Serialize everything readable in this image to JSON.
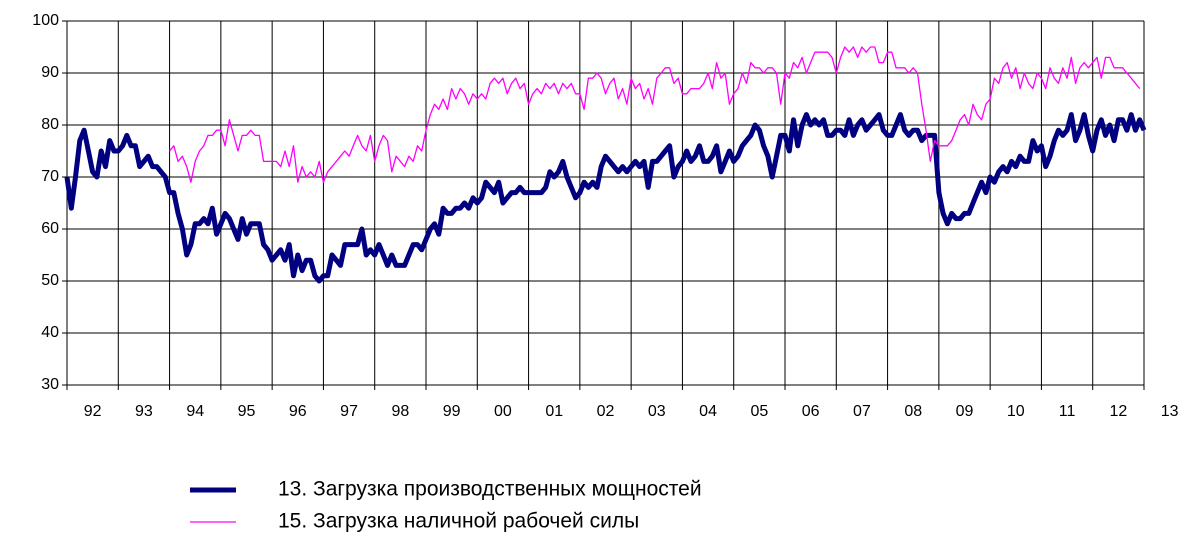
{
  "chart_data": {
    "type": "line",
    "categories": [
      "92",
      "93",
      "94",
      "95",
      "96",
      "97",
      "98",
      "99",
      "00",
      "01",
      "02",
      "03",
      "04",
      "05",
      "06",
      "07",
      "08",
      "09",
      "10",
      "11",
      "12",
      "13"
    ],
    "ylim": [
      30,
      100
    ],
    "yticks": [
      30,
      40,
      50,
      60,
      70,
      80,
      90,
      100
    ],
    "grid": true,
    "legend": "bottom",
    "series": [
      {
        "name": "13. Загрузка производственных мощностей",
        "color": "#000080",
        "values": [
          [
            70,
            64,
            70,
            77,
            79,
            75,
            71,
            70,
            75,
            72,
            77,
            75
          ],
          [
            75,
            76,
            78,
            76,
            76,
            72,
            73,
            74,
            72,
            72,
            71,
            70
          ],
          [
            67,
            67,
            63,
            60,
            55,
            57,
            61,
            61,
            62,
            61,
            64,
            59
          ],
          [
            61,
            63,
            62,
            60,
            58,
            62,
            59,
            61,
            61,
            61,
            57,
            56
          ],
          [
            54,
            55,
            56,
            54,
            57,
            51,
            55,
            52,
            54,
            54,
            51,
            50
          ],
          [
            51,
            51,
            55,
            54,
            53,
            57,
            57,
            57,
            57,
            60,
            55,
            56
          ],
          [
            55,
            57,
            55,
            53,
            55,
            53,
            53,
            53,
            55,
            57,
            57,
            56
          ],
          [
            58,
            60,
            61,
            59,
            64,
            63,
            63,
            64,
            64,
            65,
            64,
            66
          ],
          [
            65,
            66,
            69,
            68,
            67,
            69,
            65,
            66,
            67,
            67,
            68,
            67
          ],
          [
            67,
            67,
            67,
            67,
            68,
            71,
            70,
            71,
            73,
            70,
            68,
            66
          ],
          [
            67,
            69,
            68,
            69,
            68,
            72,
            74,
            73,
            72,
            71,
            72,
            71
          ],
          [
            72,
            73,
            72,
            73,
            68,
            73,
            73,
            74,
            75,
            76,
            70,
            72
          ],
          [
            73,
            75,
            73,
            74,
            76,
            73,
            73,
            74,
            76,
            71,
            73,
            75
          ],
          [
            73,
            74,
            76,
            77,
            78,
            80,
            79,
            76,
            74,
            70,
            74,
            78
          ],
          [
            78,
            75,
            81,
            76,
            80,
            82,
            80,
            81,
            80,
            81,
            78,
            78
          ],
          [
            79,
            79,
            78,
            81,
            78,
            80,
            81,
            79,
            80,
            81,
            82,
            79
          ],
          [
            78,
            78,
            80,
            82,
            79,
            78,
            79,
            79,
            77,
            78,
            78,
            78
          ],
          [
            67,
            63,
            61,
            63,
            62,
            62,
            63,
            63,
            65,
            67,
            69,
            67
          ],
          [
            70,
            69,
            71,
            72,
            71,
            73,
            72,
            74,
            73,
            73,
            77,
            75
          ],
          [
            76,
            72,
            74,
            77,
            79,
            78,
            79,
            82,
            77,
            79,
            82,
            78
          ],
          [
            75,
            79,
            81,
            78,
            80,
            77,
            81,
            81,
            79,
            82,
            79,
            81
          ],
          [
            79
          ]
        ]
      },
      {
        "name": "15. Загрузка наличной рабочей силы",
        "color": "#ff00ff",
        "values": [
          [],
          [],
          [
            75,
            76,
            73,
            74,
            72,
            69,
            73,
            75,
            76,
            78,
            78,
            79
          ],
          [
            79,
            76,
            81,
            78,
            75,
            78,
            78,
            79,
            78,
            78,
            73,
            73
          ],
          [
            73,
            73,
            72,
            75,
            72,
            76,
            69,
            72,
            70,
            71,
            70,
            73
          ],
          [
            69,
            71,
            72,
            73,
            74,
            75,
            74,
            76,
            78,
            76,
            75,
            78
          ],
          [
            73,
            76,
            78,
            77,
            71,
            74,
            73,
            72,
            74,
            73,
            76,
            75
          ],
          [
            79,
            82,
            84,
            83,
            85,
            83,
            87,
            85,
            87,
            86,
            84,
            86
          ],
          [
            85,
            86,
            85,
            88,
            89,
            88,
            89,
            86,
            88,
            89,
            87,
            88
          ],
          [
            84,
            86,
            87,
            86,
            88,
            87,
            88,
            86,
            88,
            87,
            88,
            86
          ],
          [
            86,
            83,
            89,
            89,
            90,
            89,
            86,
            88,
            89,
            85,
            87,
            84
          ],
          [
            89,
            87,
            88,
            85,
            87,
            84,
            89,
            90,
            91,
            91,
            88,
            89
          ],
          [
            86,
            86,
            87,
            87,
            87,
            88,
            90,
            87,
            92,
            89,
            90,
            84
          ],
          [
            86,
            87,
            90,
            88,
            92,
            91,
            91,
            90,
            91,
            91,
            90,
            84
          ],
          [
            90,
            89,
            92,
            91,
            93,
            90,
            92,
            94,
            94,
            94,
            94,
            93
          ],
          [
            90,
            93,
            95,
            94,
            95,
            93,
            95,
            94,
            95,
            95,
            92,
            92
          ],
          [
            94,
            94,
            91,
            91,
            91,
            90,
            91,
            90,
            84,
            79,
            73,
            77
          ],
          [
            76,
            76,
            76,
            77,
            79,
            81,
            82,
            80,
            84,
            82,
            81,
            84
          ],
          [
            85,
            89,
            88,
            91,
            92,
            89,
            91,
            87,
            90,
            88,
            87,
            90
          ],
          [
            89,
            87,
            91,
            89,
            88,
            91,
            89,
            93,
            88,
            91,
            92,
            91
          ],
          [
            92,
            93,
            89,
            93,
            93,
            91,
            91,
            91,
            90,
            89,
            88,
            87
          ],
          []
        ]
      }
    ]
  }
}
